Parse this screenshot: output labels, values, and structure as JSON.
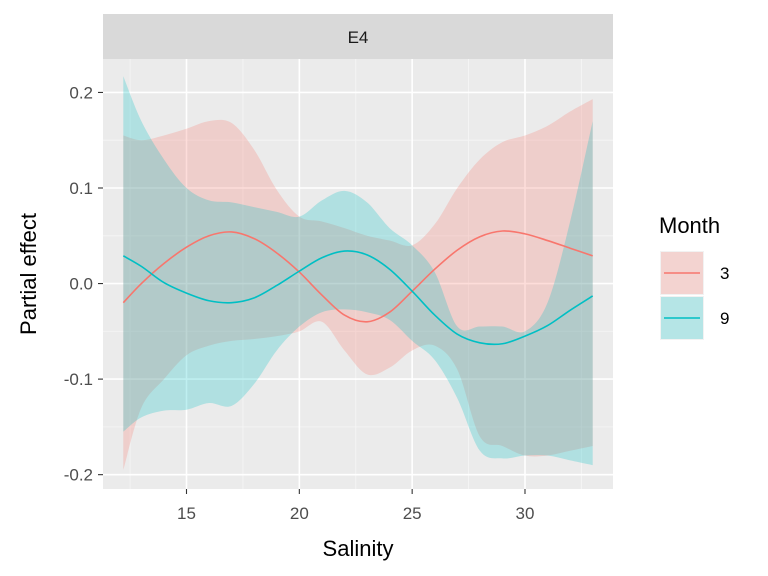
{
  "chart_data": {
    "type": "line",
    "facet_label": "E4",
    "xlabel": "Salinity",
    "ylabel": "Partial effect",
    "xlim": [
      11.3,
      33.9
    ],
    "ylim": [
      -0.215,
      0.235
    ],
    "x_ticks": [
      15,
      20,
      25,
      30
    ],
    "y_ticks": [
      -0.2,
      -0.1,
      0.0,
      0.1,
      0.2
    ],
    "x_tick_labels": [
      "15",
      "20",
      "25",
      "30"
    ],
    "y_tick_labels": [
      "-0.2",
      "-0.1",
      "0.0",
      "0.1",
      "0.2"
    ],
    "legend": {
      "title": "Month",
      "placement": "right"
    },
    "grid": true,
    "series": [
      {
        "name": "3",
        "color": "#F8766D",
        "x": [
          12.2,
          13,
          14,
          15,
          16,
          17,
          18,
          19,
          20,
          21,
          22,
          23,
          24,
          25,
          26,
          27,
          28,
          29,
          30,
          31,
          32,
          33
        ],
        "y": [
          -0.02,
          0,
          0.021,
          0.038,
          0.05,
          0.054,
          0.047,
          0.032,
          0.012,
          -0.012,
          -0.033,
          -0.04,
          -0.03,
          -0.008,
          0.015,
          0.035,
          0.049,
          0.055,
          0.052,
          0.045,
          0.037,
          0.029
        ],
        "lower": [
          -0.195,
          -0.13,
          -0.1,
          -0.075,
          -0.065,
          -0.06,
          -0.058,
          -0.055,
          -0.05,
          -0.04,
          -0.07,
          -0.095,
          -0.088,
          -0.07,
          -0.065,
          -0.09,
          -0.16,
          -0.17,
          -0.18,
          -0.18,
          -0.175,
          -0.17
        ],
        "upper": [
          0.155,
          0.15,
          0.155,
          0.162,
          0.17,
          0.168,
          0.14,
          0.098,
          0.07,
          0.065,
          0.058,
          0.05,
          0.045,
          0.04,
          0.062,
          0.1,
          0.13,
          0.148,
          0.155,
          0.165,
          0.18,
          0.193
        ]
      },
      {
        "name": "9",
        "color": "#00BFC4",
        "x": [
          12.2,
          13,
          14,
          15,
          16,
          17,
          18,
          19,
          20,
          21,
          22,
          23,
          24,
          25,
          26,
          27,
          28,
          29,
          30,
          31,
          32,
          33
        ],
        "y": [
          0.029,
          0.018,
          0.001,
          -0.01,
          -0.018,
          -0.02,
          -0.015,
          -0.002,
          0.013,
          0.027,
          0.034,
          0.03,
          0.015,
          -0.008,
          -0.033,
          -0.053,
          -0.062,
          -0.063,
          -0.055,
          -0.044,
          -0.028,
          -0.013
        ],
        "lower": [
          -0.155,
          -0.14,
          -0.133,
          -0.132,
          -0.125,
          -0.128,
          -0.105,
          -0.07,
          -0.045,
          -0.03,
          -0.027,
          -0.03,
          -0.038,
          -0.06,
          -0.08,
          -0.12,
          -0.175,
          -0.183,
          -0.18,
          -0.18,
          -0.185,
          -0.19
        ],
        "upper": [
          0.217,
          0.17,
          0.13,
          0.1,
          0.087,
          0.085,
          0.08,
          0.075,
          0.07,
          0.087,
          0.097,
          0.085,
          0.058,
          0.04,
          0.012,
          -0.045,
          -0.045,
          -0.045,
          -0.05,
          -0.02,
          0.065,
          0.17
        ]
      }
    ]
  }
}
